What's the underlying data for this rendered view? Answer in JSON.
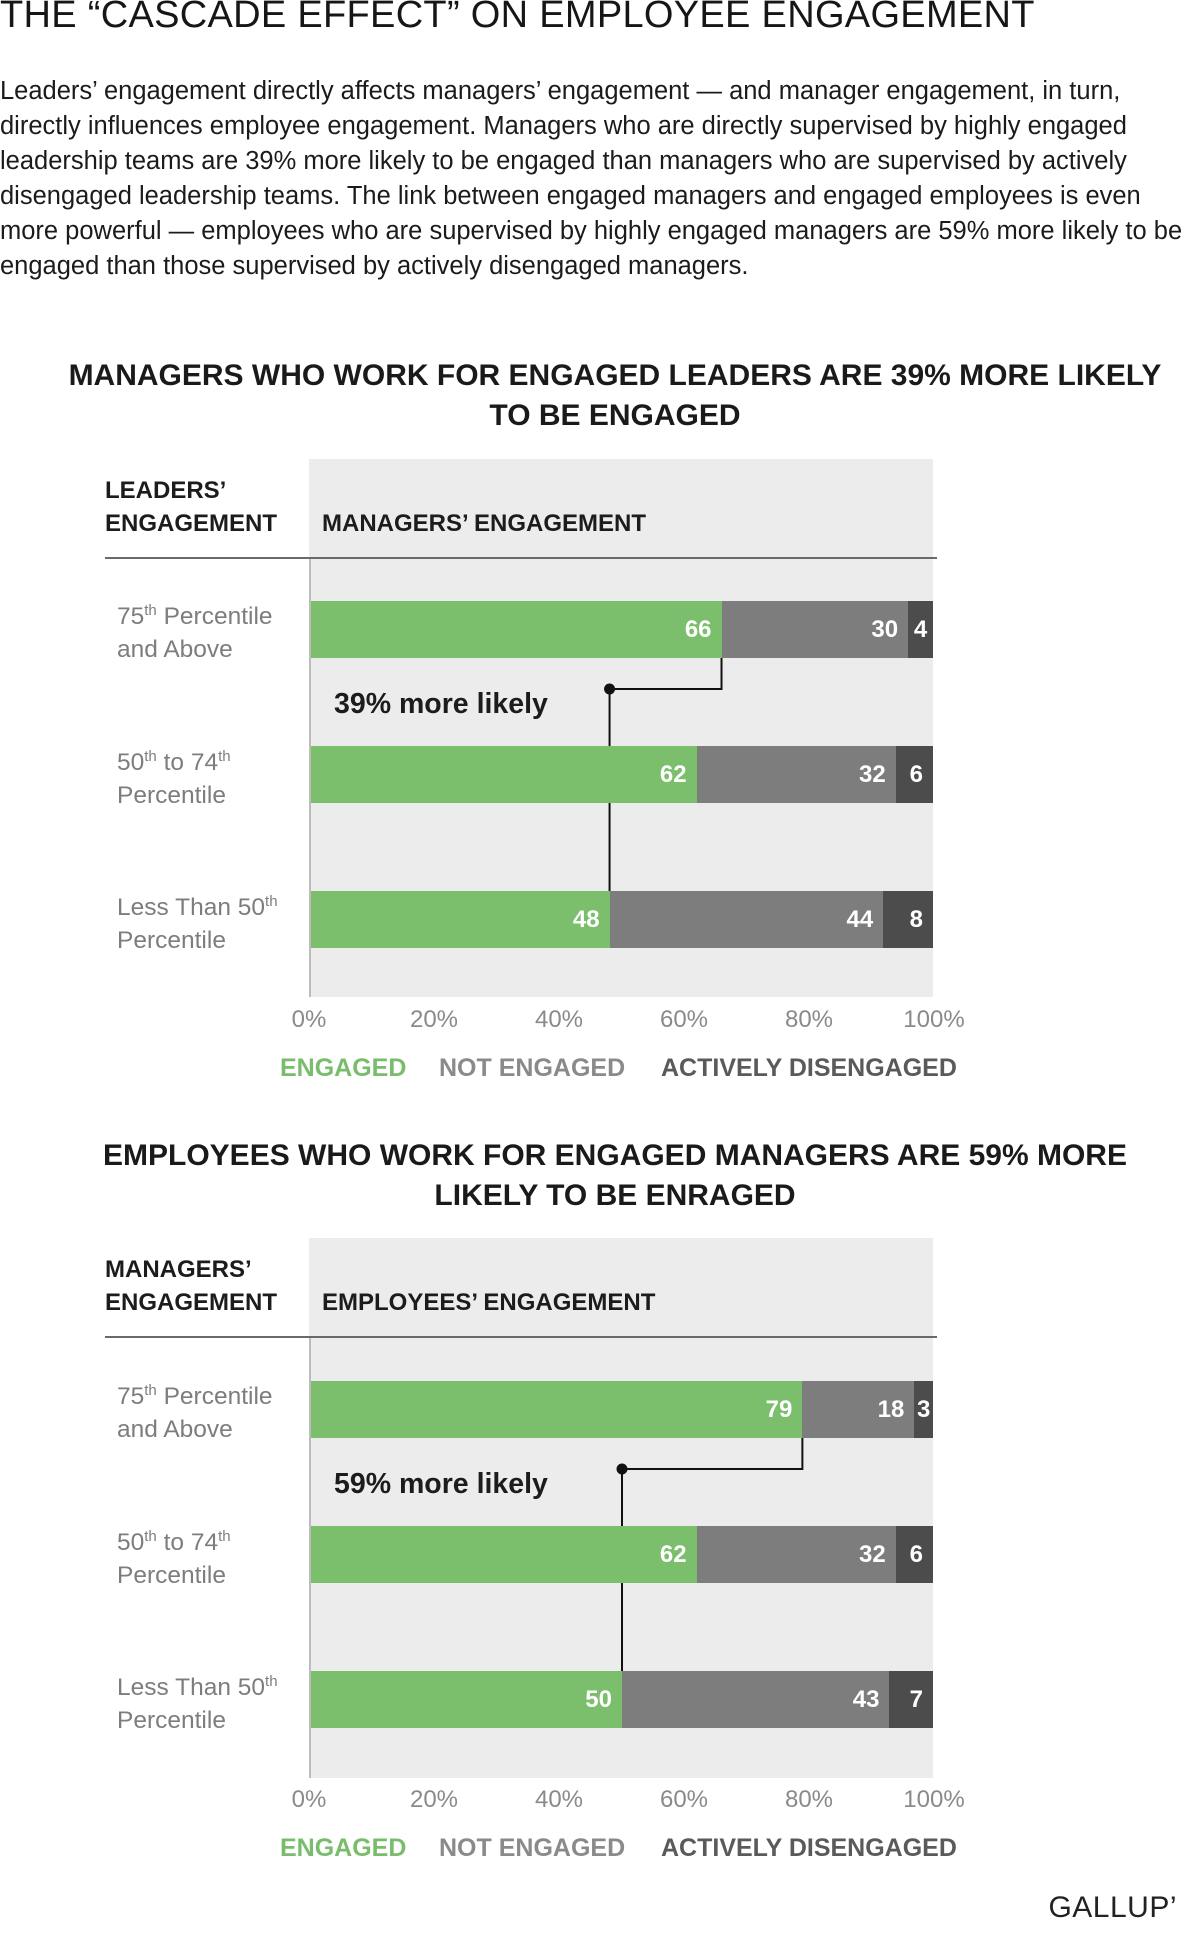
{
  "page": {
    "title": "THE “CASCADE EFFECT” ON EMPLOYEE ENGAGEMENT",
    "intro": "Leaders’ engagement directly affects managers’ engagement — and manager engagement, in turn, directly influences employee engagement. Managers who are directly supervised by highly engaged leadership teams are 39% more likely to be engaged than managers who are supervised by actively disengaged leadership teams. The link between engaged managers and engaged employees is even more powerful — employees who are supervised by highly engaged managers are 59% more likely to be engaged than those supervised by actively disengaged managers.",
    "brand": "GALLUP’"
  },
  "colors": {
    "engaged": "#7bbf6d",
    "not_engaged": "#7d7d7d",
    "actively_disengaged": "#4c4c4c",
    "panel": "#ececec"
  },
  "charts": [
    {
      "title": "MANAGERS WHO WORK FOR ENGAGED LEADERS ARE 39% MORE LIKELY TO BE ENGAGED",
      "row_header": [
        "LEADERS’",
        "ENGAGEMENT"
      ],
      "col_header": "MANAGERS’ ENGAGEMENT",
      "row_labels": [
        {
          "pre": "75",
          "sup": "th",
          "post": " Percentile",
          "line2": "and Above"
        },
        {
          "pre": "50",
          "sup": "th",
          "mid": " to 74",
          "sup2": "th",
          "line2": "Percentile"
        },
        {
          "pre": "Less Than 50",
          "sup": "th",
          "line2": "Percentile"
        }
      ],
      "callout": "39% more likely",
      "ticks": [
        "0%",
        "20%",
        "40%",
        "60%",
        "80%",
        "100%"
      ],
      "legend": {
        "engaged": "ENGAGED",
        "not_engaged": "NOT ENGAGED",
        "actively_disengaged": "ACTIVELY DISENGAGED"
      }
    },
    {
      "title": "EMPLOYEES WHO WORK FOR ENGAGED MANAGERS ARE 59% MORE LIKELY TO BE ENRAGED",
      "row_header": [
        "MANAGERS’",
        "ENGAGEMENT"
      ],
      "col_header": "EMPLOYEES’ ENGAGEMENT",
      "row_labels": [
        {
          "pre": "75",
          "sup": "th",
          "post": " Percentile",
          "line2": "and Above"
        },
        {
          "pre": "50",
          "sup": "th",
          "mid": " to 74",
          "sup2": "th",
          "line2": "Percentile"
        },
        {
          "pre": "Less Than 50",
          "sup": "th",
          "line2": "Percentile"
        }
      ],
      "callout": "59% more likely",
      "ticks": [
        "0%",
        "20%",
        "40%",
        "60%",
        "80%",
        "100%"
      ],
      "legend": {
        "engaged": "ENGAGED",
        "not_engaged": "NOT ENGAGED",
        "actively_disengaged": "ACTIVELY DISENGAGED"
      }
    }
  ],
  "chart_data": [
    {
      "type": "bar",
      "orientation": "horizontal",
      "stacked": true,
      "title": "MANAGERS WHO WORK FOR ENGAGED LEADERS ARE 39% MORE LIKELY TO BE ENGAGED",
      "xlabel": "MANAGERS’ ENGAGEMENT",
      "ylabel": "LEADERS’ ENGAGEMENT",
      "xlim": [
        0,
        100
      ],
      "categories": [
        "75th Percentile and Above",
        "50th to 74th Percentile",
        "Less Than 50th Percentile"
      ],
      "series": [
        {
          "name": "ENGAGED",
          "values": [
            66,
            62,
            48
          ]
        },
        {
          "name": "NOT ENGAGED",
          "values": [
            30,
            32,
            44
          ]
        },
        {
          "name": "ACTIVELY DISENGAGED",
          "values": [
            4,
            6,
            8
          ]
        }
      ],
      "annotation": "39% more likely",
      "legend_position": "bottom"
    },
    {
      "type": "bar",
      "orientation": "horizontal",
      "stacked": true,
      "title": "EMPLOYEES WHO WORK FOR ENGAGED MANAGERS ARE 59% MORE LIKELY TO BE ENRAGED",
      "xlabel": "EMPLOYEES’ ENGAGEMENT",
      "ylabel": "MANAGERS’ ENGAGEMENT",
      "xlim": [
        0,
        100
      ],
      "categories": [
        "75th Percentile and Above",
        "50th to 74th Percentile",
        "Less Than 50th Percentile"
      ],
      "series": [
        {
          "name": "ENGAGED",
          "values": [
            79,
            62,
            50
          ]
        },
        {
          "name": "NOT ENGAGED",
          "values": [
            18,
            32,
            43
          ]
        },
        {
          "name": "ACTIVELY DISENGAGED",
          "values": [
            3,
            6,
            7
          ]
        }
      ],
      "annotation": "59% more likely",
      "legend_position": "bottom"
    }
  ]
}
